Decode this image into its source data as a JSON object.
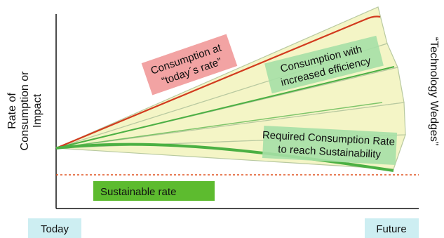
{
  "y_axis_label": [
    "Rate of",
    "Consumption or",
    "Impact"
  ],
  "x_start_label": "Today",
  "x_end_label": "Future",
  "right_label": "“Technology Wedges”",
  "callouts": {
    "today_rate": [
      "Consumption at",
      "“today´s rate”"
    ],
    "efficiency": [
      "Consumption with",
      "increased efficiency"
    ],
    "required": [
      "Required Consumption Rate",
      "to reach Sustainability"
    ],
    "sustainable": "Sustainable rate"
  },
  "colors": {
    "wedge_fill": "#f4f5c6",
    "wedge_stroke": "#b8c9a0",
    "today_line": "#d23a1e",
    "efficiency_line": "#4bb043",
    "required_line": "#4bb043",
    "sustainable_line": "#e0501e",
    "pink_box": "#f2a3a3",
    "green_box": "#a6e0a6",
    "sustainable_box": "#5dbb2f",
    "axis_box": "#cdeef2"
  }
}
